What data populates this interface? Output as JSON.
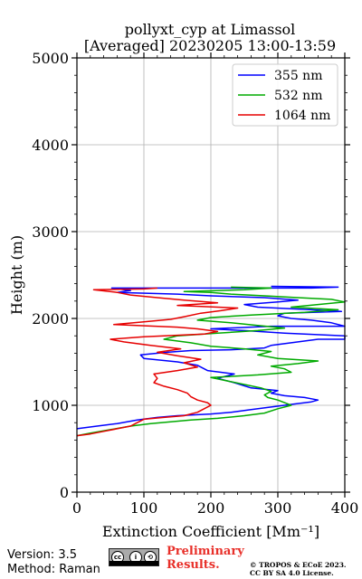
{
  "header": {
    "title": "pollyxt_cyp at Limassol",
    "subtitle": "[Averaged] 20230205 13:00-13:59"
  },
  "footer": {
    "version": "Version: 3.5",
    "method": "Method: Raman",
    "license_badge": "CC BY SA",
    "preliminary_line1": "Preliminary",
    "preliminary_line2": "Results.",
    "copyright_line1": "© TROPOS & ECoE 2023.",
    "copyright_line2": "CC BY SA 4.0 License."
  },
  "chart_data": {
    "type": "line",
    "xlabel": "Extinction Coefficient [Mm⁻¹]",
    "ylabel": "Height (m)",
    "xlim": [
      0,
      400
    ],
    "ylim": [
      0,
      5000
    ],
    "xticks": [
      0,
      100,
      200,
      300,
      400
    ],
    "yticks": [
      0,
      1000,
      2000,
      3000,
      4000,
      5000
    ],
    "grid": true,
    "legend_position": "top-right",
    "series": [
      {
        "name": "355 nm",
        "color": "#0000ff",
        "points": [
          [
            0,
            730
          ],
          [
            30,
            760
          ],
          [
            60,
            790
          ],
          [
            90,
            830
          ],
          [
            120,
            860
          ],
          [
            150,
            880
          ],
          [
            200,
            900
          ],
          [
            230,
            920
          ],
          [
            260,
            950
          ],
          [
            290,
            980
          ],
          [
            320,
            1010
          ],
          [
            350,
            1040
          ],
          [
            360,
            1060
          ],
          [
            340,
            1090
          ],
          [
            310,
            1110
          ],
          [
            290,
            1140
          ],
          [
            300,
            1170
          ],
          [
            260,
            1200
          ],
          [
            235,
            1260
          ],
          [
            210,
            1310
          ],
          [
            235,
            1360
          ],
          [
            195,
            1400
          ],
          [
            180,
            1460
          ],
          [
            150,
            1500
          ],
          [
            100,
            1540
          ],
          [
            95,
            1580
          ],
          [
            135,
            1610
          ],
          [
            170,
            1630
          ],
          [
            230,
            1640
          ],
          [
            280,
            1660
          ],
          [
            290,
            1690
          ],
          [
            320,
            1720
          ],
          [
            360,
            1760
          ],
          [
            400,
            1760
          ],
          [
            400,
            1800
          ],
          [
            310,
            1830
          ],
          [
            250,
            1860
          ],
          [
            200,
            1880
          ],
          [
            290,
            1910
          ],
          [
            370,
            1910
          ],
          [
            400,
            1910
          ],
          [
            380,
            1950
          ],
          [
            350,
            1980
          ],
          [
            320,
            2000
          ],
          [
            300,
            2030
          ],
          [
            310,
            2060
          ],
          [
            395,
            2080
          ],
          [
            350,
            2100
          ],
          [
            270,
            2130
          ],
          [
            250,
            2160
          ],
          [
            300,
            2190
          ],
          [
            330,
            2210
          ],
          [
            280,
            2240
          ],
          [
            200,
            2260
          ],
          [
            150,
            2280
          ],
          [
            60,
            2300
          ],
          [
            80,
            2320
          ],
          [
            52,
            2350
          ],
          [
            350,
            2350
          ],
          [
            390,
            2360
          ],
          [
            290,
            2370
          ]
        ]
      },
      {
        "name": "532 nm",
        "color": "#00aa00",
        "points": [
          [
            0,
            650
          ],
          [
            20,
            680
          ],
          [
            50,
            720
          ],
          [
            80,
            760
          ],
          [
            110,
            790
          ],
          [
            140,
            810
          ],
          [
            170,
            830
          ],
          [
            210,
            850
          ],
          [
            250,
            880
          ],
          [
            280,
            910
          ],
          [
            300,
            960
          ],
          [
            320,
            1000
          ],
          [
            310,
            1030
          ],
          [
            300,
            1060
          ],
          [
            285,
            1090
          ],
          [
            280,
            1120
          ],
          [
            290,
            1160
          ],
          [
            275,
            1200
          ],
          [
            250,
            1240
          ],
          [
            225,
            1280
          ],
          [
            200,
            1320
          ],
          [
            270,
            1350
          ],
          [
            320,
            1380
          ],
          [
            310,
            1420
          ],
          [
            290,
            1450
          ],
          [
            330,
            1480
          ],
          [
            360,
            1510
          ],
          [
            300,
            1540
          ],
          [
            270,
            1580
          ],
          [
            290,
            1620
          ],
          [
            250,
            1650
          ],
          [
            200,
            1680
          ],
          [
            170,
            1720
          ],
          [
            130,
            1760
          ],
          [
            150,
            1800
          ],
          [
            210,
            1830
          ],
          [
            270,
            1860
          ],
          [
            310,
            1890
          ],
          [
            270,
            1920
          ],
          [
            230,
            1950
          ],
          [
            180,
            1980
          ],
          [
            200,
            2010
          ],
          [
            260,
            2040
          ],
          [
            340,
            2070
          ],
          [
            390,
            2100
          ],
          [
            320,
            2130
          ],
          [
            360,
            2160
          ],
          [
            400,
            2190
          ],
          [
            380,
            2220
          ],
          [
            330,
            2240
          ],
          [
            280,
            2260
          ],
          [
            230,
            2280
          ],
          [
            200,
            2300
          ],
          [
            160,
            2310
          ],
          [
            250,
            2330
          ],
          [
            290,
            2350
          ],
          [
            230,
            2360
          ]
        ]
      },
      {
        "name": "1064 nm",
        "color": "#e60000",
        "points": [
          [
            0,
            650
          ],
          [
            20,
            670
          ],
          [
            40,
            700
          ],
          [
            60,
            730
          ],
          [
            80,
            760
          ],
          [
            90,
            800
          ],
          [
            100,
            840
          ],
          [
            130,
            860
          ],
          [
            160,
            880
          ],
          [
            180,
            920
          ],
          [
            190,
            960
          ],
          [
            200,
            1000
          ],
          [
            195,
            1030
          ],
          [
            180,
            1060
          ],
          [
            170,
            1100
          ],
          [
            165,
            1140
          ],
          [
            150,
            1180
          ],
          [
            130,
            1220
          ],
          [
            115,
            1260
          ],
          [
            120,
            1310
          ],
          [
            115,
            1360
          ],
          [
            150,
            1400
          ],
          [
            180,
            1440
          ],
          [
            160,
            1490
          ],
          [
            185,
            1530
          ],
          [
            150,
            1570
          ],
          [
            120,
            1610
          ],
          [
            155,
            1650
          ],
          [
            110,
            1690
          ],
          [
            70,
            1730
          ],
          [
            50,
            1760
          ],
          [
            100,
            1790
          ],
          [
            190,
            1820
          ],
          [
            210,
            1850
          ],
          [
            180,
            1880
          ],
          [
            150,
            1900
          ],
          [
            55,
            1930
          ],
          [
            100,
            1960
          ],
          [
            140,
            1990
          ],
          [
            160,
            2020
          ],
          [
            185,
            2060
          ],
          [
            215,
            2090
          ],
          [
            240,
            2120
          ],
          [
            150,
            2150
          ],
          [
            210,
            2180
          ],
          [
            160,
            2210
          ],
          [
            120,
            2240
          ],
          [
            80,
            2270
          ],
          [
            60,
            2300
          ],
          [
            25,
            2330
          ],
          [
            100,
            2340
          ],
          [
            120,
            2350
          ]
        ]
      }
    ]
  }
}
